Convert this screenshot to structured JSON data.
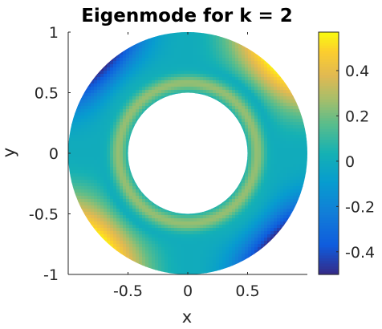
{
  "chart_data": {
    "type": "heatmap",
    "title": "Eigenmode for k = 2",
    "xlabel": "x",
    "ylabel": "y",
    "xlim": [
      -1,
      1
    ],
    "ylim": [
      -1,
      1
    ],
    "x_ticks": [
      "-0.5",
      "0",
      "0.5"
    ],
    "x_tick_values": [
      -0.5,
      0,
      0.5
    ],
    "y_ticks": [
      "1",
      "0.5",
      "0",
      "-0.5",
      "-1"
    ],
    "y_tick_values": [
      1,
      0.5,
      0,
      -0.5,
      -1
    ],
    "domain": {
      "shape": "annulus",
      "inner_radius": 0.5,
      "outer_radius": 1.0
    },
    "colorbar": {
      "colormap": "parula",
      "limits": [
        -0.5,
        0.57
      ],
      "ticks": [
        "0.4",
        "0.2",
        "0",
        "-0.2",
        "-0.4"
      ],
      "tick_values": [
        0.4,
        0.2,
        0,
        -0.2,
        -0.4
      ]
    },
    "field": {
      "description_values": {
        "inner_ring_value": 0.25,
        "outer_lobe_peak": 0.55,
        "outer_lobe_min": -0.5,
        "background_value": 0.0
      }
    },
    "grid": false,
    "colors": {
      "axis_line": "#262626",
      "background": "#ffffff"
    }
  }
}
